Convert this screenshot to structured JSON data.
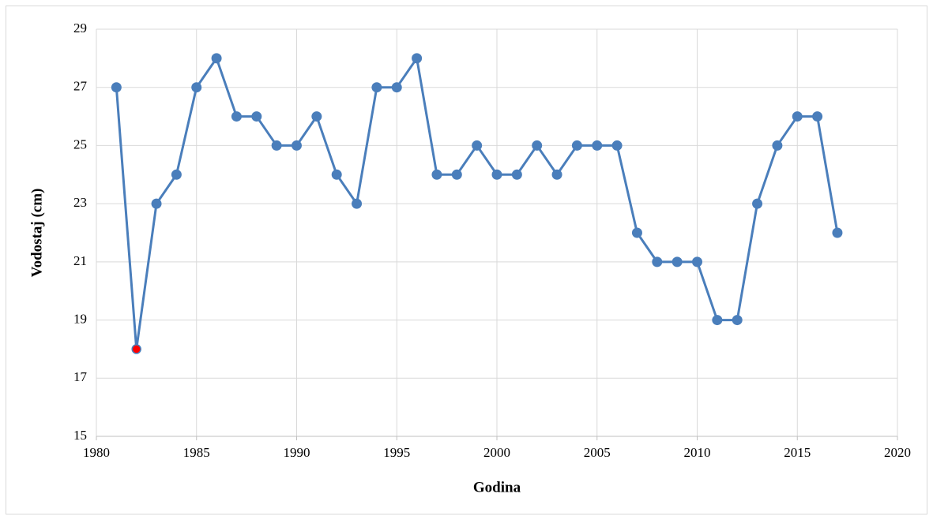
{
  "chart_data": {
    "type": "line",
    "x_label": "Godina",
    "y_label": "Vodostaj (cm)",
    "x": [
      1981,
      1982,
      1983,
      1984,
      1985,
      1986,
      1987,
      1988,
      1989,
      1990,
      1991,
      1992,
      1993,
      1994,
      1995,
      1996,
      1997,
      1998,
      1999,
      2000,
      2001,
      2002,
      2003,
      2004,
      2005,
      2006,
      2007,
      2008,
      2009,
      2010,
      2011,
      2012,
      2013,
      2014,
      2015,
      2016,
      2017
    ],
    "values": [
      27,
      18,
      23,
      24,
      27,
      28,
      26,
      26,
      25,
      25,
      26,
      24,
      23,
      27,
      27,
      28,
      24,
      24,
      25,
      24,
      24,
      25,
      24,
      25,
      25,
      25,
      22,
      21,
      21,
      21,
      19,
      19,
      23,
      25,
      26,
      26,
      22
    ],
    "color": "#4a7ebb",
    "highlight_x": 1982,
    "highlight_color": "#ff0000",
    "xlim": [
      1980,
      2020
    ],
    "xticks": [
      1980,
      1985,
      1990,
      1995,
      2000,
      2005,
      2010,
      2015,
      2020
    ],
    "ylim": [
      15,
      29
    ],
    "yticks": [
      15,
      17,
      19,
      21,
      23,
      25,
      27,
      29
    ],
    "grid": true
  }
}
